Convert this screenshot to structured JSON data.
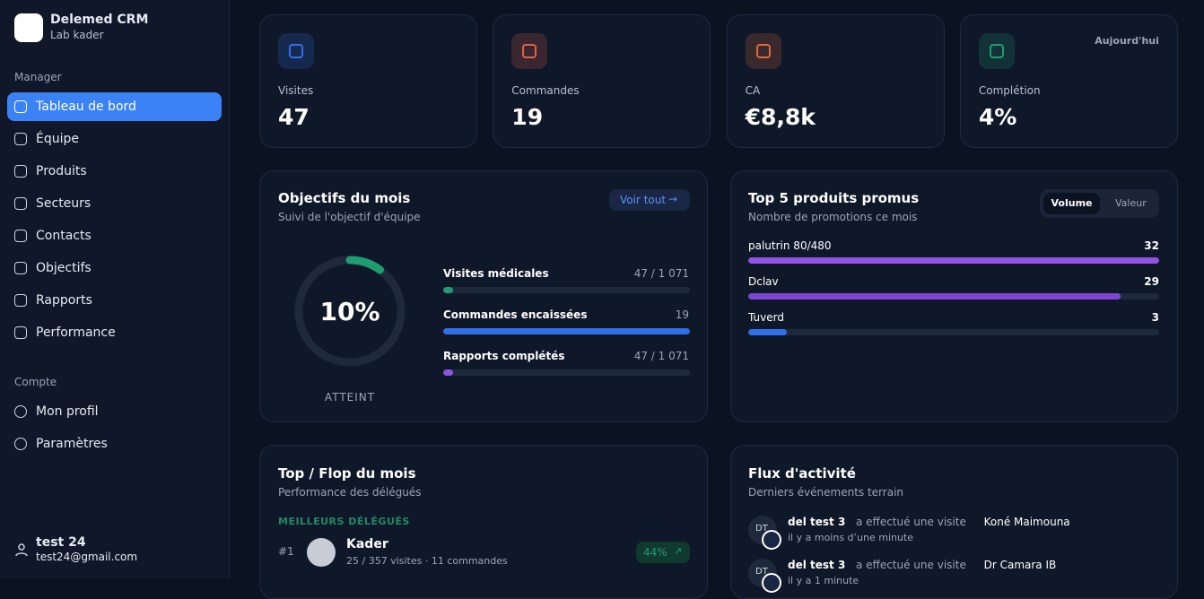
{
  "sidebar": {
    "brand": "Delemed CRM",
    "org": "Lab kader",
    "section_manager": "Manager",
    "nav": [
      "Tableau de bord",
      "Équipe",
      "Produits",
      "Secteurs",
      "Contacts",
      "Objectifs",
      "Rapports",
      "Performance"
    ],
    "section_account": "Compte",
    "account_nav": [
      "Mon profil",
      "Paramètres"
    ],
    "user": {
      "name": "test 24",
      "email": "test24@gmail.com"
    }
  },
  "stats": [
    {
      "label": "Visites",
      "value": "47",
      "color": "#2f6fe8"
    },
    {
      "label": "Commandes",
      "value": "19",
      "color": "#e0614a"
    },
    {
      "label": "CA",
      "value": "€8,8k",
      "color": "#e06a3a"
    },
    {
      "label": "Complétion",
      "value": "4%",
      "color": "#1f9d72",
      "badge": "Aujourd'hui"
    }
  ],
  "objectives": {
    "title": "Objectifs du mois",
    "subtitle": "Suivi de l'objectif d'équipe",
    "link": "Voir tout",
    "gauge": {
      "percent": 10,
      "label": "10%",
      "caption": "ATTEINT"
    },
    "items": [
      {
        "name": "Visites médicales",
        "label": "47 / 1 071",
        "progress": 4,
        "color": "#1f9d72"
      },
      {
        "name": "Commandes encaissées",
        "label": "19",
        "progress": 100,
        "color": "#2f6fe8"
      },
      {
        "name": "Rapports complétés",
        "label": "47 / 1 071",
        "progress": 4,
        "color": "#8b55e0"
      }
    ]
  },
  "products": {
    "title": "Top 5 produits promus",
    "subtitle": "Nombre de promotions ce mois",
    "toggle": [
      "Volume",
      "Valeur"
    ],
    "items": [
      {
        "name": "palutrin 80/480",
        "value": 32,
        "color": "#9352e6"
      },
      {
        "name": "Dclav",
        "value": 29,
        "color": "#7e44d4"
      },
      {
        "name": "Tuverd",
        "value": 3,
        "color": "#2f6fe8"
      }
    ]
  },
  "topflop": {
    "title": "Top / Flop du mois",
    "subtitle": "Performance des délégués",
    "section": "MEILLEURS DÉLÉGUÉS",
    "rows": [
      {
        "rank": "#1",
        "name": "Kader",
        "detail": "25 / 357 visites · 11 commandes",
        "badge": "44%"
      }
    ]
  },
  "activity": {
    "title": "Flux d'activité",
    "subtitle": "Derniers événements terrain",
    "events": [
      {
        "initials": "DT",
        "actor": "del test 3",
        "action": "a effectué une visite",
        "target": "Koné Maimouna",
        "time": "il y a moins d’une minute"
      },
      {
        "initials": "DT",
        "actor": "del test 3",
        "action": "a effectué une visite",
        "target": "Dr Camara IB",
        "time": "il y a 1 minute"
      }
    ]
  }
}
